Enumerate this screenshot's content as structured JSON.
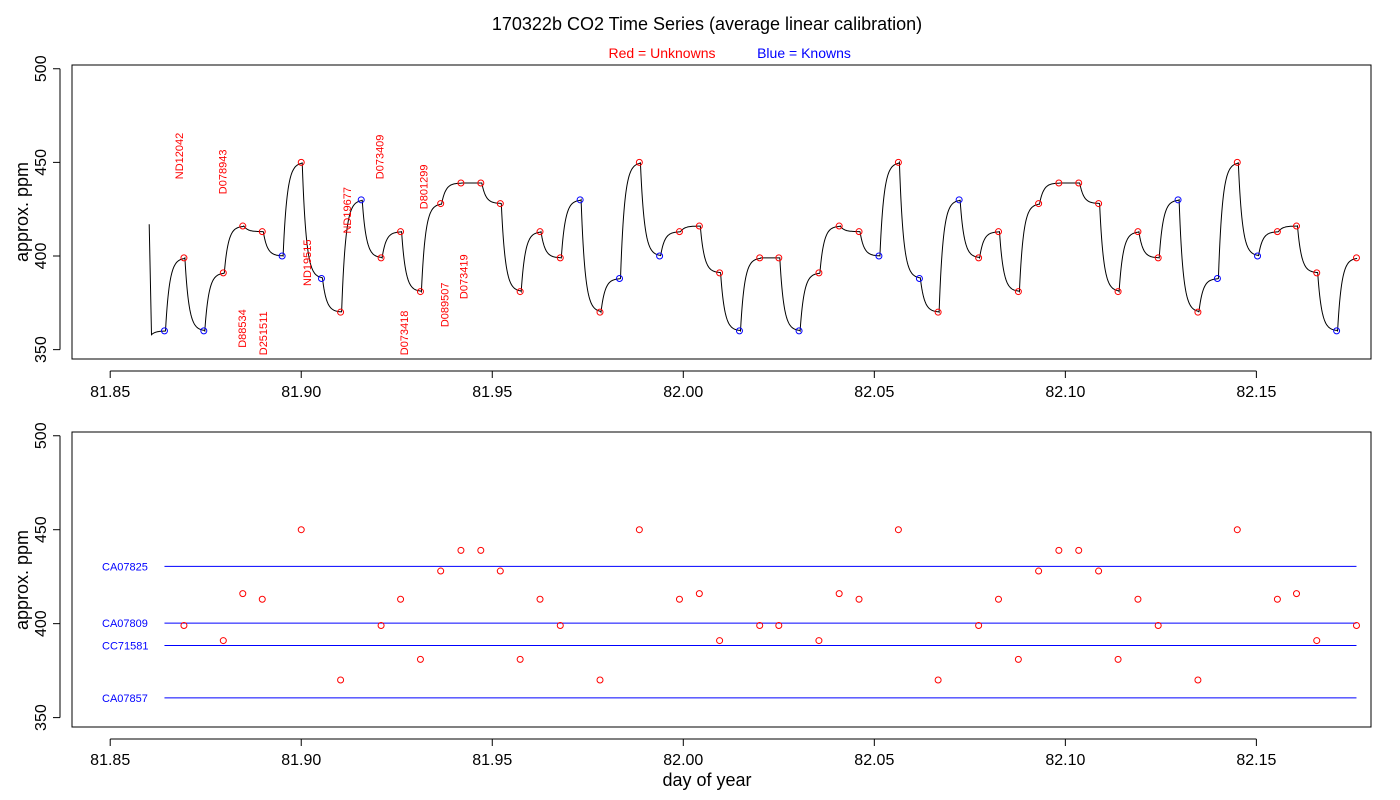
{
  "title": "170322b   CO2 Time Series (average linear calibration)",
  "legend": {
    "unknowns_label": "Red = Unknowns",
    "knowns_label": "Blue = Knowns",
    "unknowns_color": "#ff0000",
    "knowns_color": "#0000ff"
  },
  "chart_data": [
    {
      "type": "line",
      "panel": "top",
      "ylabel": "approx. ppm",
      "xlabel": "",
      "xlim": [
        81.84,
        82.18
      ],
      "ylim": [
        345,
        502
      ],
      "x_ticks": [
        81.85,
        81.9,
        81.95,
        82.0,
        82.05,
        82.1,
        82.15
      ],
      "x_tick_labels": [
        "81.85",
        "81.90",
        "81.95",
        "82.00",
        "82.05",
        "82.10",
        "82.15"
      ],
      "y_ticks": [
        350,
        400,
        450,
        500
      ],
      "y_tick_labels": [
        "350",
        "400",
        "450",
        "500"
      ],
      "line_color": "#000000",
      "trace_start": [
        81.8602,
        417
      ],
      "trace_dip": [
        81.8608,
        358
      ],
      "unknowns": [
        [
          81.8693,
          399
        ],
        [
          81.8796,
          391
        ],
        [
          81.8847,
          416
        ],
        [
          81.8898,
          413
        ],
        [
          81.9,
          450
        ],
        [
          81.9103,
          370
        ],
        [
          81.9209,
          399
        ],
        [
          81.926,
          413
        ],
        [
          81.9312,
          381
        ],
        [
          81.9365,
          428
        ],
        [
          81.9418,
          439
        ],
        [
          81.947,
          439
        ],
        [
          81.9521,
          428
        ],
        [
          81.9573,
          381
        ],
        [
          81.9625,
          413
        ],
        [
          81.9678,
          399
        ],
        [
          81.9782,
          370
        ],
        [
          81.9885,
          450
        ],
        [
          81.999,
          413
        ],
        [
          82.0042,
          416
        ],
        [
          82.0095,
          391
        ],
        [
          82.02,
          399
        ],
        [
          82.025,
          399
        ],
        [
          82.0355,
          391
        ],
        [
          82.0408,
          416
        ],
        [
          82.046,
          413
        ],
        [
          82.0563,
          450
        ],
        [
          82.0667,
          370
        ],
        [
          82.0773,
          399
        ],
        [
          82.0825,
          413
        ],
        [
          82.0877,
          381
        ],
        [
          82.093,
          428
        ],
        [
          82.0983,
          439
        ],
        [
          82.1035,
          439
        ],
        [
          82.1087,
          428
        ],
        [
          82.1138,
          381
        ],
        [
          82.119,
          413
        ],
        [
          82.1243,
          399
        ],
        [
          82.1347,
          370
        ],
        [
          82.145,
          450
        ],
        [
          82.1555,
          413
        ],
        [
          82.1605,
          416
        ],
        [
          82.1658,
          391
        ],
        [
          82.1762,
          399
        ]
      ],
      "knowns": [
        [
          81.8642,
          360
        ],
        [
          81.8745,
          360
        ],
        [
          81.895,
          400
        ],
        [
          81.9053,
          388
        ],
        [
          81.9157,
          430
        ],
        [
          81.973,
          430
        ],
        [
          81.9833,
          388
        ],
        [
          81.9938,
          400
        ],
        [
          82.0147,
          360
        ],
        [
          82.0303,
          360
        ],
        [
          82.0512,
          400
        ],
        [
          82.0618,
          388
        ],
        [
          82.0722,
          430
        ],
        [
          82.1295,
          430
        ],
        [
          82.1398,
          388
        ],
        [
          82.1503,
          400
        ],
        [
          82.171,
          360
        ]
      ],
      "annotations": [
        {
          "label": "ND12042",
          "x": 81.869,
          "y": 441
        },
        {
          "label": "D078943",
          "x": 81.8805,
          "y": 433
        },
        {
          "label": "D88534",
          "x": 81.8855,
          "y": 351
        },
        {
          "label": "D251511",
          "x": 81.891,
          "y": 347
        },
        {
          "label": "ND19515",
          "x": 81.9025,
          "y": 384
        },
        {
          "label": "ND19677",
          "x": 81.913,
          "y": 412
        },
        {
          "label": "D073409",
          "x": 81.9215,
          "y": 441
        },
        {
          "label": "D073418",
          "x": 81.928,
          "y": 347
        },
        {
          "label": "D801299",
          "x": 81.933,
          "y": 425
        },
        {
          "label": "D089507",
          "x": 81.9385,
          "y": 362
        },
        {
          "label": "D073419",
          "x": 81.9435,
          "y": 377
        }
      ]
    },
    {
      "type": "scatter",
      "panel": "bottom",
      "ylabel": "approx. ppm",
      "xlabel": "day of year",
      "xlim": [
        81.84,
        82.18
      ],
      "ylim": [
        345,
        502
      ],
      "x_ticks": [
        81.85,
        81.9,
        81.95,
        82.0,
        82.05,
        82.1,
        82.15
      ],
      "x_tick_labels": [
        "81.85",
        "81.90",
        "81.95",
        "82.00",
        "82.05",
        "82.10",
        "82.15"
      ],
      "y_ticks": [
        350,
        400,
        450,
        500
      ],
      "y_tick_labels": [
        "350",
        "400",
        "450",
        "500"
      ],
      "reference_lines": [
        {
          "name": "CA07825",
          "value": 430.5
        },
        {
          "name": "CA07809",
          "value": 400.3
        },
        {
          "name": "CC71581",
          "value": 388.4
        },
        {
          "name": "CA07857",
          "value": 360.5
        }
      ],
      "reference_x_range": [
        81.8642,
        82.1762
      ],
      "unknowns": [
        [
          81.8693,
          399
        ],
        [
          81.8796,
          391
        ],
        [
          81.8847,
          416
        ],
        [
          81.8898,
          413
        ],
        [
          81.9,
          450
        ],
        [
          81.9103,
          370
        ],
        [
          81.9209,
          399
        ],
        [
          81.926,
          413
        ],
        [
          81.9312,
          381
        ],
        [
          81.9365,
          428
        ],
        [
          81.9418,
          439
        ],
        [
          81.947,
          439
        ],
        [
          81.9521,
          428
        ],
        [
          81.9573,
          381
        ],
        [
          81.9625,
          413
        ],
        [
          81.9678,
          399
        ],
        [
          81.9782,
          370
        ],
        [
          81.9885,
          450
        ],
        [
          81.999,
          413
        ],
        [
          82.0042,
          416
        ],
        [
          82.0095,
          391
        ],
        [
          82.02,
          399
        ],
        [
          82.025,
          399
        ],
        [
          82.0355,
          391
        ],
        [
          82.0408,
          416
        ],
        [
          82.046,
          413
        ],
        [
          82.0563,
          450
        ],
        [
          82.0667,
          370
        ],
        [
          82.0773,
          399
        ],
        [
          82.0825,
          413
        ],
        [
          82.0877,
          381
        ],
        [
          82.093,
          428
        ],
        [
          82.0983,
          439
        ],
        [
          82.1035,
          439
        ],
        [
          82.1087,
          428
        ],
        [
          82.1138,
          381
        ],
        [
          82.119,
          413
        ],
        [
          82.1243,
          399
        ],
        [
          82.1347,
          370
        ],
        [
          82.145,
          450
        ],
        [
          82.1555,
          413
        ],
        [
          82.1605,
          416
        ],
        [
          82.1658,
          391
        ],
        [
          82.1762,
          399
        ]
      ]
    }
  ]
}
